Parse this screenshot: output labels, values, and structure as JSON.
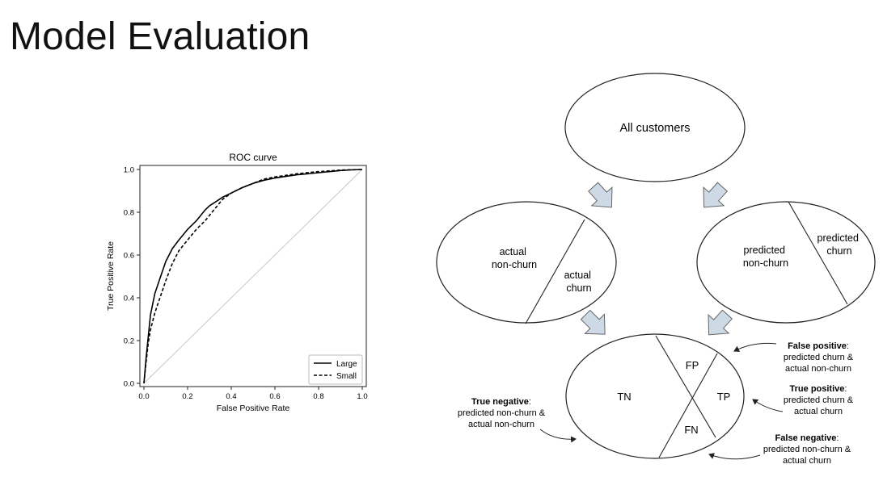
{
  "page": {
    "title": "Model Evaluation"
  },
  "chart_data": {
    "type": "line",
    "title": "ROC curve",
    "xlabel": "False Positive Rate",
    "ylabel": "True Positive Rate",
    "xlim": [
      0.0,
      1.0
    ],
    "ylim": [
      0.0,
      1.0
    ],
    "xticks": [
      "0.0",
      "0.2",
      "0.4",
      "0.6",
      "0.8",
      "1.0"
    ],
    "yticks": [
      "0.0",
      "0.2",
      "0.4",
      "0.6",
      "0.8",
      "1.0"
    ],
    "legend_position": "bottom-right",
    "series": [
      {
        "name": "Large",
        "style": "solid",
        "color": "#000000",
        "x": [
          0,
          0.01,
          0.02,
          0.03,
          0.05,
          0.08,
          0.1,
          0.13,
          0.16,
          0.2,
          0.24,
          0.28,
          0.3,
          0.33,
          0.36,
          0.4,
          0.45,
          0.5,
          0.55,
          0.6,
          0.7,
          0.8,
          0.9,
          0.95,
          1.0
        ],
        "y": [
          0,
          0.12,
          0.22,
          0.32,
          0.42,
          0.51,
          0.57,
          0.63,
          0.67,
          0.72,
          0.76,
          0.81,
          0.83,
          0.85,
          0.87,
          0.89,
          0.915,
          0.935,
          0.95,
          0.96,
          0.975,
          0.985,
          0.995,
          0.998,
          1.0
        ]
      },
      {
        "name": "Small",
        "style": "dashed",
        "color": "#000000",
        "x": [
          0,
          0.01,
          0.02,
          0.03,
          0.05,
          0.08,
          0.1,
          0.13,
          0.16,
          0.2,
          0.24,
          0.28,
          0.32,
          0.36,
          0.4,
          0.45,
          0.5,
          0.55,
          0.6,
          0.7,
          0.8,
          0.9,
          0.95,
          1.0
        ],
        "y": [
          0,
          0.1,
          0.19,
          0.25,
          0.33,
          0.42,
          0.48,
          0.56,
          0.62,
          0.67,
          0.72,
          0.76,
          0.81,
          0.86,
          0.89,
          0.915,
          0.935,
          0.955,
          0.965,
          0.98,
          0.99,
          0.997,
          0.999,
          1.0
        ]
      },
      {
        "name": "",
        "style": "solid",
        "color": "#c8c8c8",
        "x": [
          0,
          1
        ],
        "y": [
          0,
          1
        ]
      }
    ]
  },
  "diagram": {
    "all_customers": "All customers",
    "actual_non_churn": [
      "actual",
      "non-churn"
    ],
    "actual_churn": [
      "actual",
      "churn"
    ],
    "predicted_non_churn": [
      "predicted",
      "non-churn"
    ],
    "predicted_churn": [
      "predicted",
      "churn"
    ],
    "tn": "TN",
    "fp": "FP",
    "tp": "TP",
    "fn": "FN",
    "false_positive": {
      "term": "False positive",
      "suffix": ":",
      "line1": "predicted churn &",
      "line2": "actual non-churn"
    },
    "true_positive": {
      "term": "True positive",
      "suffix": ":",
      "line1": "predicted churn &",
      "line2": "actual churn"
    },
    "true_negative": {
      "term": "True negative",
      "suffix": ":",
      "line1": "predicted non-churn &",
      "line2": "actual non-churn"
    },
    "false_negative": {
      "term": "False negative",
      "suffix": ":",
      "line1": "predicted non-churn &",
      "line2": "actual churn"
    },
    "arrow_color": "#cdd9e5"
  }
}
